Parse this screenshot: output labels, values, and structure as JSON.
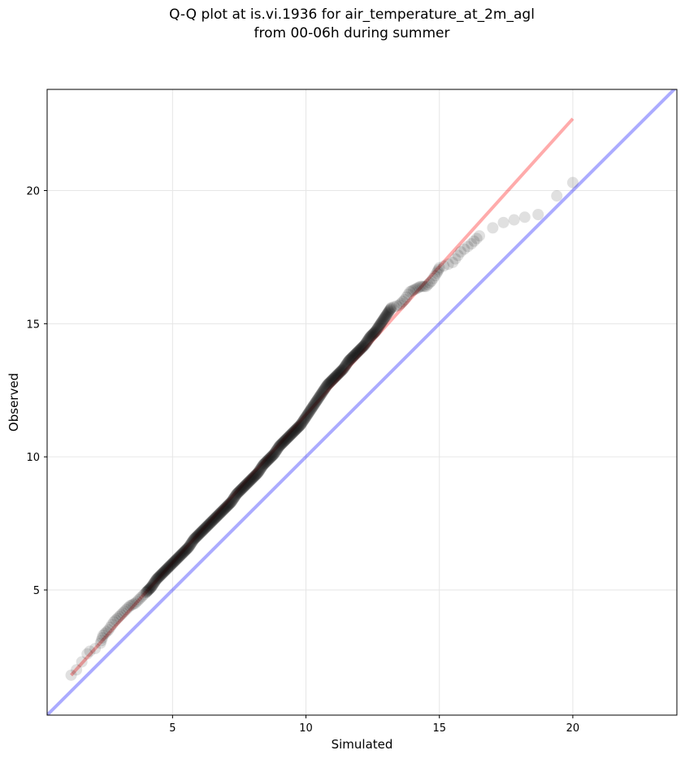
{
  "title_line1": "Q-Q plot at is.vi.1936 for air_temperature_at_2m_agl",
  "title_line2": "from 00-06h during summer",
  "colors": {
    "points": "#000000",
    "fit_line": "#ff0000",
    "identity_line": "#0000ff",
    "grid": "#e6e6e6"
  },
  "chart_data": {
    "type": "scatter",
    "title": "Q-Q plot at is.vi.1936 for air_temperature_at_2m_agl\nfrom 00-06h during summer",
    "xlabel": "Simulated",
    "ylabel": "Observed",
    "xlim": [
      0.3,
      23.9
    ],
    "ylim": [
      0.3,
      23.8
    ],
    "xticks": [
      5,
      10,
      15,
      20
    ],
    "yticks": [
      5,
      10,
      15,
      20
    ],
    "grid": true,
    "series": [
      {
        "kind": "quantile_points",
        "points": [
          [
            1.2,
            1.8
          ],
          [
            1.4,
            2.0
          ],
          [
            1.6,
            2.3
          ],
          [
            1.8,
            2.6
          ],
          [
            1.9,
            2.7
          ],
          [
            2.1,
            2.8
          ],
          [
            2.3,
            3.0
          ],
          [
            2.4,
            3.3
          ],
          [
            2.6,
            3.5
          ],
          [
            2.8,
            3.8
          ],
          [
            3.0,
            4.0
          ],
          [
            3.2,
            4.2
          ],
          [
            3.4,
            4.4
          ],
          [
            3.6,
            4.5
          ],
          [
            3.8,
            4.7
          ],
          [
            4.0,
            4.9
          ],
          [
            4.2,
            5.1
          ],
          [
            4.4,
            5.4
          ],
          [
            4.6,
            5.6
          ],
          [
            4.8,
            5.8
          ],
          [
            5.0,
            6.0
          ],
          [
            5.2,
            6.2
          ],
          [
            5.4,
            6.4
          ],
          [
            5.6,
            6.6
          ],
          [
            5.8,
            6.9
          ],
          [
            6.0,
            7.1
          ],
          [
            6.2,
            7.3
          ],
          [
            6.4,
            7.5
          ],
          [
            6.6,
            7.7
          ],
          [
            6.8,
            7.9
          ],
          [
            7.0,
            8.1
          ],
          [
            7.2,
            8.3
          ],
          [
            7.4,
            8.6
          ],
          [
            7.6,
            8.8
          ],
          [
            7.8,
            9.0
          ],
          [
            8.0,
            9.2
          ],
          [
            8.2,
            9.4
          ],
          [
            8.4,
            9.7
          ],
          [
            8.6,
            9.9
          ],
          [
            8.8,
            10.1
          ],
          [
            9.0,
            10.4
          ],
          [
            9.2,
            10.6
          ],
          [
            9.4,
            10.8
          ],
          [
            9.6,
            11.0
          ],
          [
            9.8,
            11.2
          ],
          [
            10.0,
            11.5
          ],
          [
            10.2,
            11.8
          ],
          [
            10.4,
            12.1
          ],
          [
            10.6,
            12.4
          ],
          [
            10.8,
            12.7
          ],
          [
            11.0,
            12.9
          ],
          [
            11.2,
            13.1
          ],
          [
            11.4,
            13.3
          ],
          [
            11.6,
            13.6
          ],
          [
            11.8,
            13.8
          ],
          [
            12.0,
            14.0
          ],
          [
            12.2,
            14.2
          ],
          [
            12.4,
            14.5
          ],
          [
            12.6,
            14.7
          ],
          [
            12.8,
            15.0
          ],
          [
            13.0,
            15.3
          ],
          [
            13.2,
            15.6
          ],
          [
            13.5,
            15.7
          ],
          [
            13.7,
            15.9
          ],
          [
            13.9,
            16.2
          ],
          [
            14.1,
            16.3
          ],
          [
            14.3,
            16.4
          ],
          [
            14.5,
            16.4
          ],
          [
            14.7,
            16.6
          ],
          [
            14.9,
            16.9
          ],
          [
            15.0,
            17.1
          ],
          [
            15.5,
            17.3
          ],
          [
            15.8,
            17.7
          ],
          [
            16.2,
            18.0
          ],
          [
            16.5,
            18.3
          ],
          [
            17.0,
            18.6
          ],
          [
            17.4,
            18.8
          ],
          [
            17.8,
            18.9
          ],
          [
            18.2,
            19.0
          ],
          [
            18.7,
            19.1
          ],
          [
            19.4,
            19.8
          ],
          [
            20.0,
            20.3
          ]
        ]
      },
      {
        "kind": "fit_line",
        "points": [
          [
            1.2,
            1.8
          ],
          [
            20.0,
            22.7
          ]
        ]
      },
      {
        "kind": "identity_line",
        "points": [
          [
            0.3,
            0.3
          ],
          [
            23.9,
            23.9
          ]
        ]
      }
    ]
  }
}
